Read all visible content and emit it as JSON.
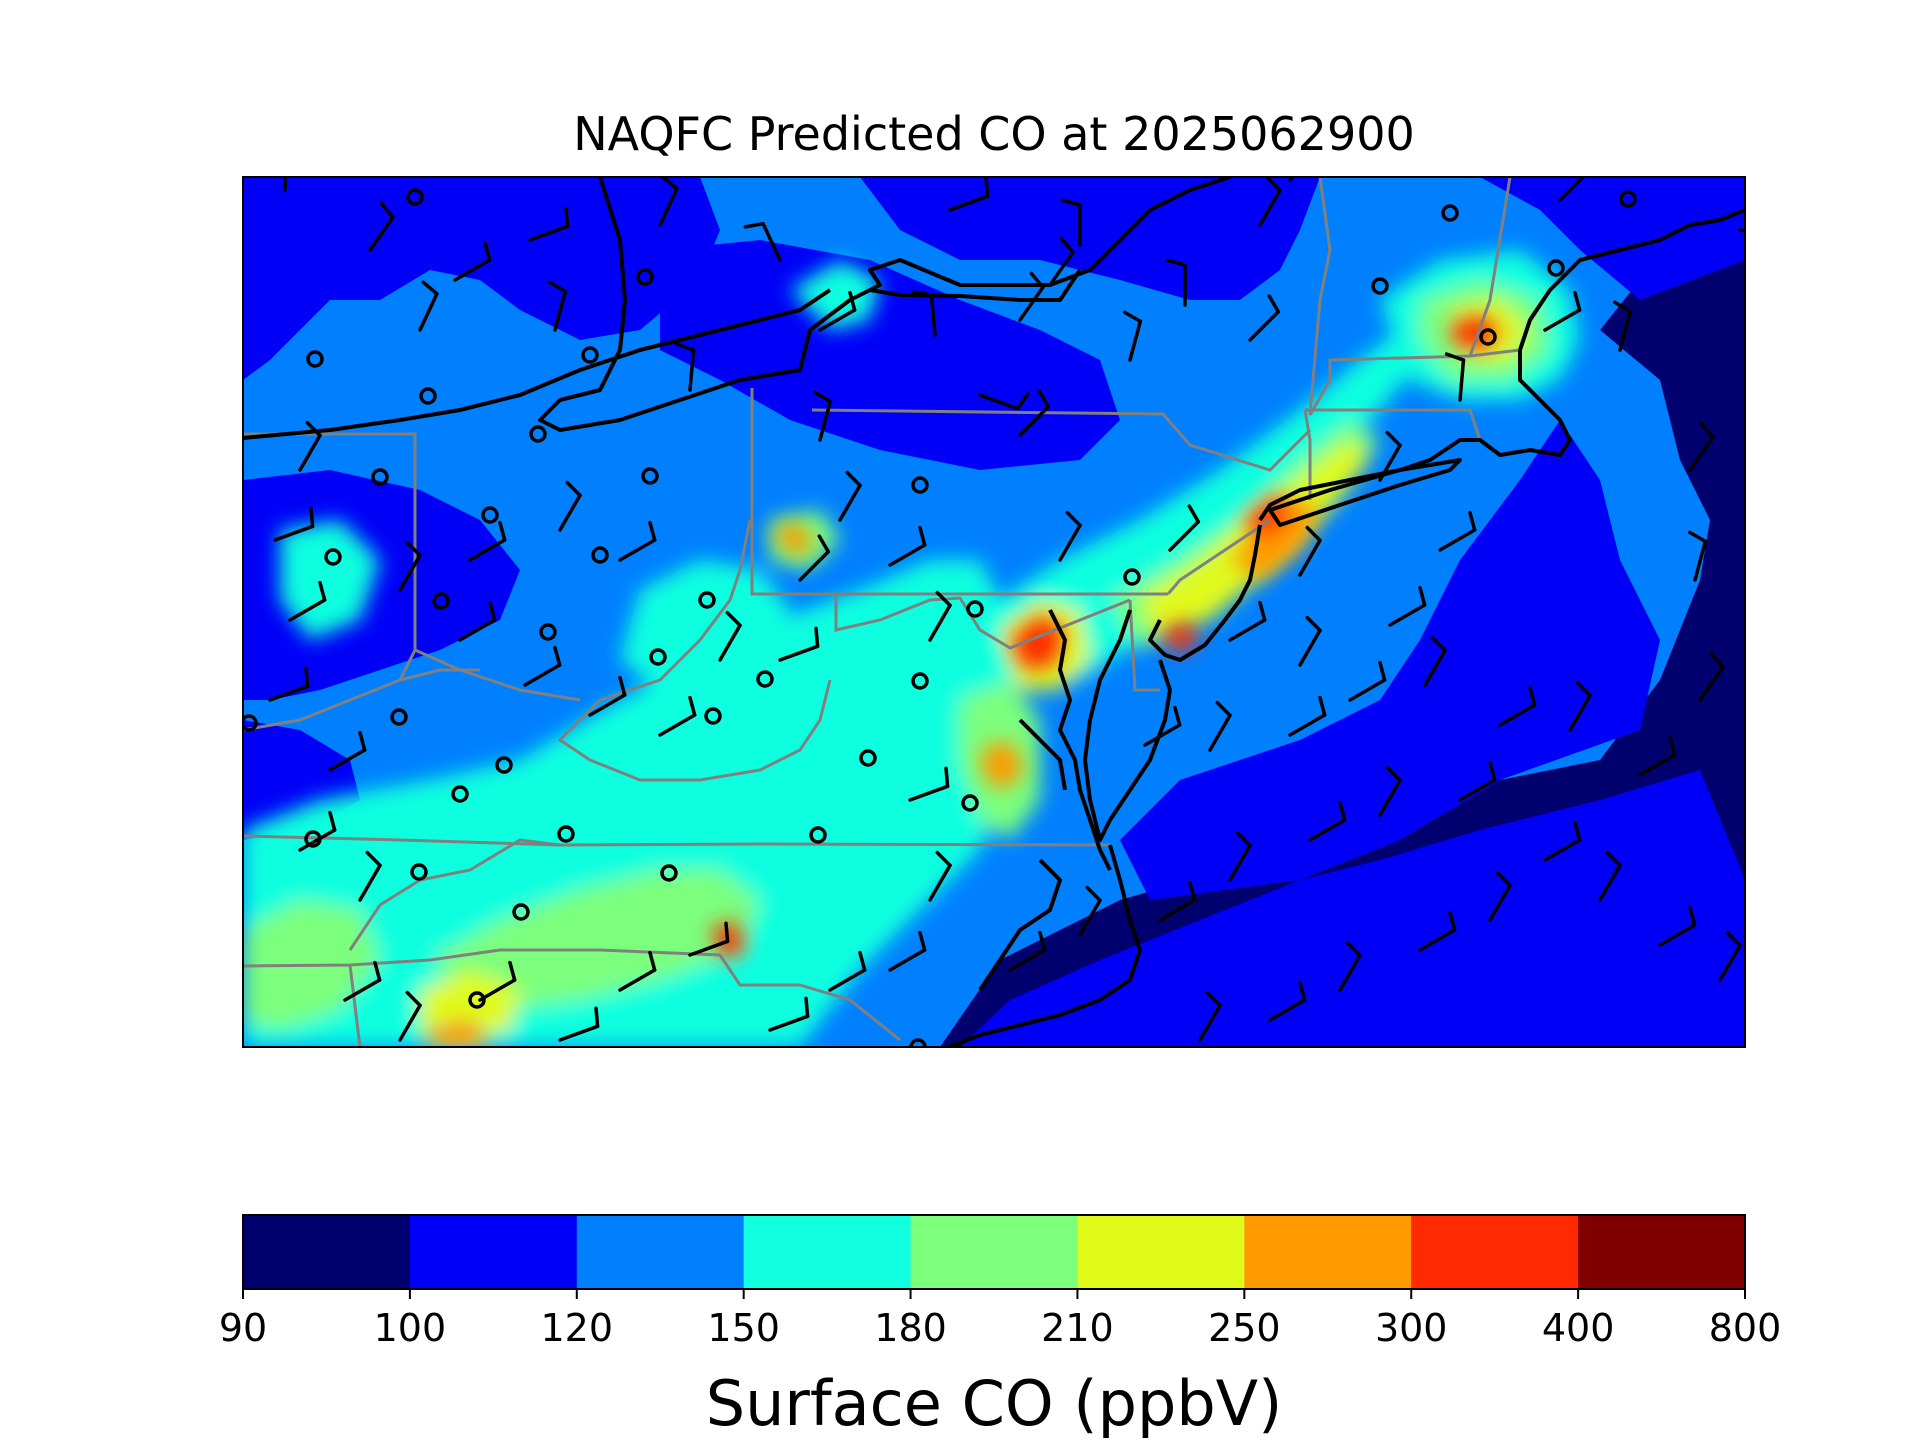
{
  "figure": {
    "title": "NAQFC Predicted CO at 2025062900"
  },
  "colorbar": {
    "label": "Surface CO (ppbV)",
    "ticks": [
      "90",
      "100",
      "120",
      "150",
      "180",
      "210",
      "250",
      "300",
      "400",
      "800"
    ],
    "bins": [
      {
        "min": 90,
        "max": 100,
        "color": "#00006e"
      },
      {
        "min": 100,
        "max": 120,
        "color": "#0000f7"
      },
      {
        "min": 120,
        "max": 150,
        "color": "#0080ff"
      },
      {
        "min": 150,
        "max": 180,
        "color": "#10ffdf"
      },
      {
        "min": 180,
        "max": 210,
        "color": "#7cff7b"
      },
      {
        "min": 210,
        "max": 250,
        "color": "#e0fa1a"
      },
      {
        "min": 250,
        "max": 300,
        "color": "#ff9a00"
      },
      {
        "min": 300,
        "max": 400,
        "color": "#ff2a00"
      },
      {
        "min": 400,
        "max": 800,
        "color": "#800000"
      }
    ]
  },
  "map": {
    "region": "Mid-Atlantic and Northeast United States",
    "variable": "Surface CO",
    "units": "ppbV",
    "valid_time": "2025062900",
    "overlays": [
      "coastlines",
      "state-boundaries",
      "wind-barbs",
      "observation-sites"
    ],
    "colors": {
      "coastline": "#000000",
      "state_border": "#808080",
      "barb": "#000000",
      "station_marker": "#000000"
    }
  }
}
